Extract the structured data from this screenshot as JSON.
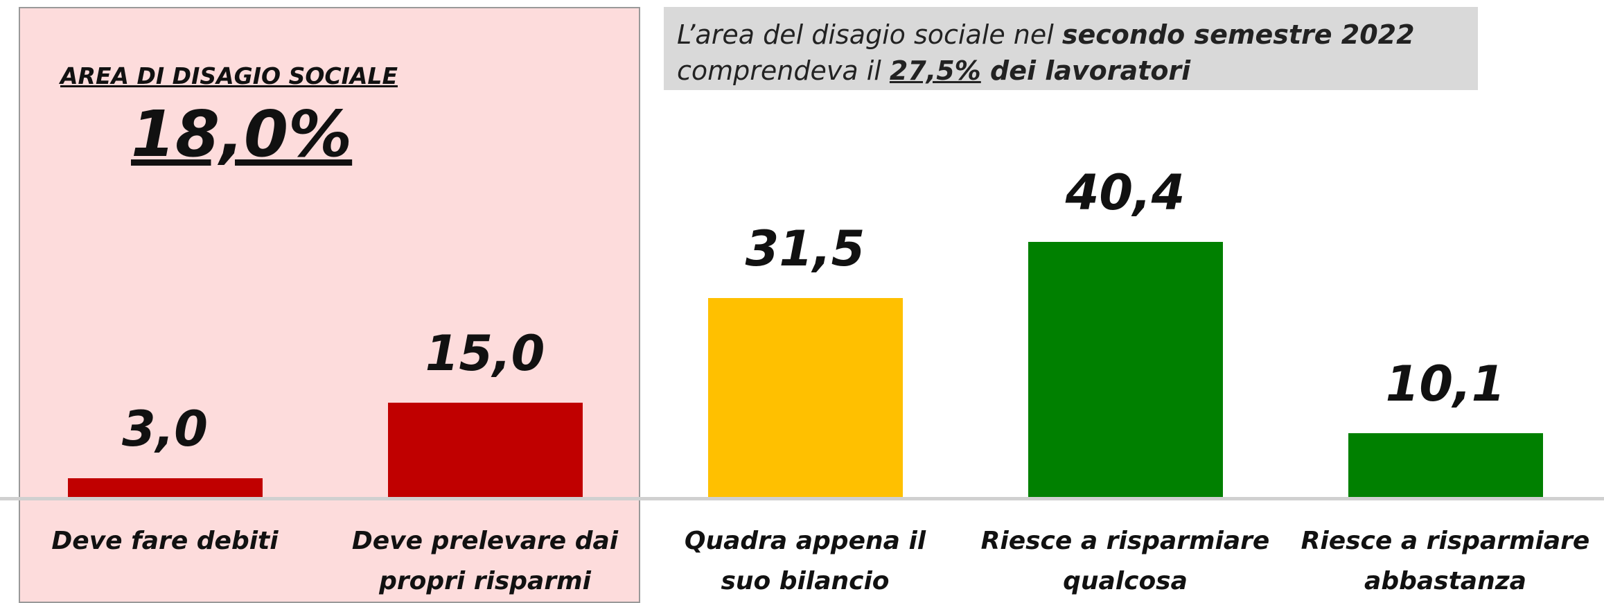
{
  "chart_data": {
    "type": "bar",
    "box_title": "AREA DI DISAGIO SOCIALE",
    "box_value": "18,0%",
    "note": {
      "line1": [
        "L’area del disagio sociale nel ",
        "secondo semestre 2022"
      ],
      "line2": [
        "comprendeva il ",
        "27,5%",
        " dei lavoratori"
      ]
    },
    "categories": [
      "Deve fare debiti",
      "Deve prelevare dai\npropri risparmi",
      "Quadra appena il\nsuo bilancio",
      "Riesce a risparmiare\nqualcosa",
      "Riesce a risparmiare\nabbastanza"
    ],
    "values": [
      3.0,
      15.0,
      31.5,
      40.4,
      10.1
    ],
    "value_labels": [
      "3,0",
      "15,0",
      "31,5",
      "40,4",
      "10,1"
    ],
    "colors": [
      "#c00000",
      "#c00000",
      "#ffc000",
      "#008000",
      "#008000"
    ]
  }
}
